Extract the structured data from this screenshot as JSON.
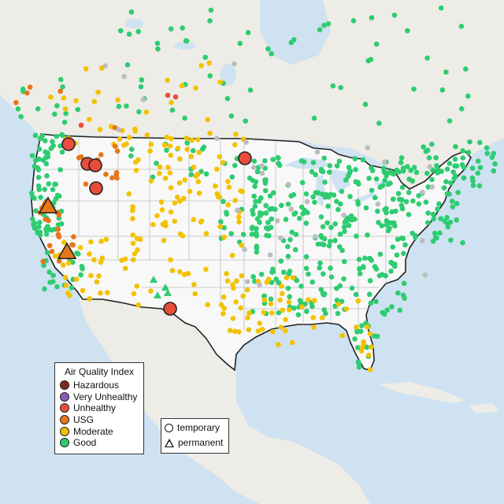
{
  "legend": {
    "title": "Air Quality Index",
    "categories": [
      {
        "label": "Hazardous",
        "color": "#7e2b1f"
      },
      {
        "label": "Very Unhealthy",
        "color": "#8a5bb5"
      },
      {
        "label": "Unhealthy",
        "color": "#e84d3c"
      },
      {
        "label": "USG",
        "color": "#e8761a"
      },
      {
        "label": "Moderate",
        "color": "#f2c200"
      },
      {
        "label": "Good",
        "color": "#2ecc71"
      }
    ]
  },
  "type_legend": {
    "items": [
      {
        "label": "temporary",
        "shape": "circle"
      },
      {
        "label": "permanent",
        "shape": "triangle"
      }
    ]
  },
  "map": {
    "background_colors": {
      "water": "#cfe2f1",
      "land": "#f1efe9",
      "us_fill": "#f7f7f7",
      "borders": "#222222",
      "state_lines": "#bdbdbd"
    },
    "no_data_color": "#bdbdbd"
  }
}
